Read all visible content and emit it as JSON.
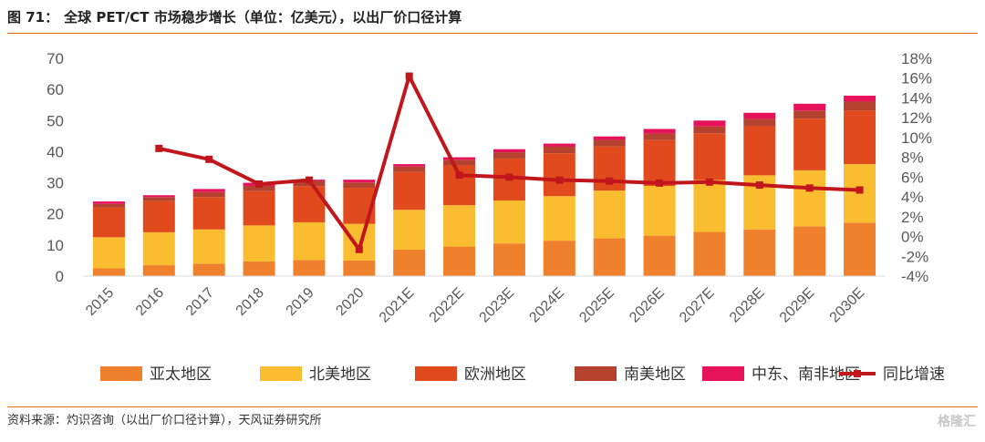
{
  "figure": {
    "number": "图 71：",
    "title": "全球 PET/CT 市场稳步增长（单位：亿美元），以出厂价口径计算",
    "source": "资料来源：灼识咨询（以出厂价口径计算），天风证券研究所",
    "watermark": "格隆汇"
  },
  "chart_data": {
    "type": "bar",
    "stacked": true,
    "categories": [
      "2015",
      "2016",
      "2017",
      "2018",
      "2019",
      "2020",
      "2021E",
      "2022E",
      "2023E",
      "2024E",
      "2025E",
      "2026E",
      "2027E",
      "2028E",
      "2029E",
      "2030E"
    ],
    "series": [
      {
        "name": "亚太地区",
        "color": "#f0812c",
        "values": [
          2.5,
          3.5,
          4,
          4.7,
          5.2,
          5,
          8.5,
          9.5,
          10.5,
          11.4,
          12.2,
          13,
          14.2,
          15,
          16,
          17.2
        ]
      },
      {
        "name": "北美地区",
        "color": "#fbbd30",
        "values": [
          10,
          10.6,
          11,
          11.6,
          12.1,
          11.8,
          12.8,
          13.3,
          13.8,
          14.3,
          15.3,
          16,
          16.7,
          17.4,
          18,
          18.8
        ]
      },
      {
        "name": "欧洲地区",
        "color": "#e04a1c",
        "values": [
          9.5,
          10,
          10.4,
          11,
          11.6,
          11.6,
          12.2,
          12.8,
          13.5,
          13.8,
          14.2,
          14.7,
          15,
          15.8,
          16.6,
          17.2
        ]
      },
      {
        "name": "南美地区",
        "color": "#b5412f",
        "values": [
          1.2,
          1.3,
          1.6,
          1.7,
          1.7,
          1.7,
          1.7,
          1.8,
          2,
          2.1,
          2.1,
          2.1,
          2.2,
          2.3,
          2.6,
          2.9
        ]
      },
      {
        "name": "中东、南非地区",
        "color": "#e6135a",
        "values": [
          0.8,
          0.6,
          1.0,
          1.0,
          0.4,
          0.9,
          0.8,
          0.8,
          1.0,
          1.0,
          1.1,
          1.5,
          1.9,
          2.0,
          2.2,
          1.9
        ]
      }
    ],
    "line_series": {
      "name": "同比增速",
      "color": "#c0161c",
      "axis": "right",
      "values": [
        null,
        8.9,
        7.8,
        5.3,
        5.7,
        -1.3,
        16.2,
        6.2,
        6.0,
        5.7,
        5.6,
        5.4,
        5.5,
        5.2,
        4.9,
        4.7
      ]
    },
    "ylim_left": [
      0,
      70
    ],
    "yticks_left": [
      "0",
      "10",
      "20",
      "30",
      "40",
      "50",
      "60",
      "70"
    ],
    "ylim_right": [
      -4,
      18
    ],
    "yticks_right": [
      "-4%",
      "-2%",
      "0%",
      "2%",
      "4%",
      "6%",
      "8%",
      "10%",
      "12%",
      "14%",
      "16%",
      "18%"
    ],
    "grid": false,
    "legend_position": "bottom"
  }
}
